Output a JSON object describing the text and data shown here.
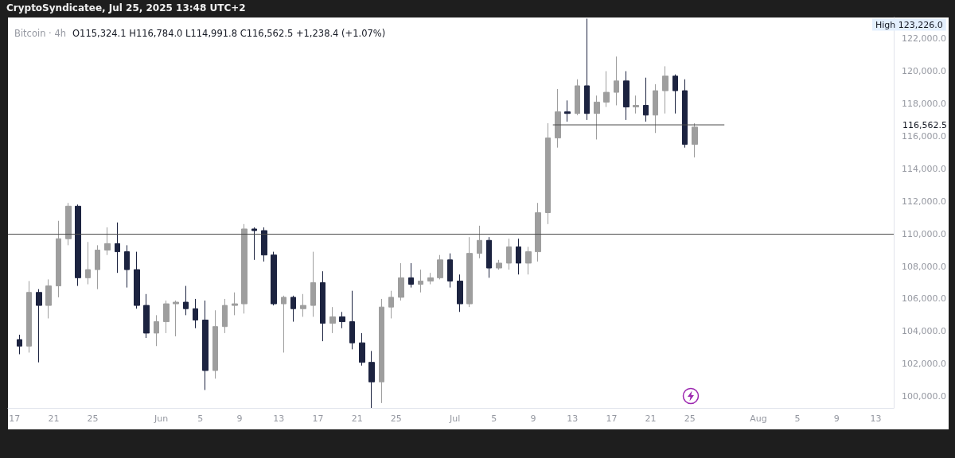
{
  "chart_data": {
    "type": "candlestick",
    "title": "Bitcoin · 4h",
    "subtitle": "O115,324.1 H116,784.0 L114,991.8 C116,562.5 +1,238.4 (+1.07%)",
    "annotations": [
      "CryptoSyndicatee, Jul 25, 2025 13:48 UTC+2",
      "High 123,226.0",
      "116,562.5"
    ],
    "series": [
      {
        "x": [
          "2025-05-17T12:00",
          "2025-05-18T12:00",
          "2025-05-19T12:00",
          "2025-05-20T12:00",
          "2025-05-21T12:00",
          "2025-05-22T12:00",
          "2025-05-23T12:00",
          "2025-05-24T12:00",
          "2025-05-25T12:00",
          "2025-05-26T12:00",
          "2025-05-27T12:00",
          "2025-05-28T12:00",
          "2025-05-29T12:00",
          "2025-05-30T12:00",
          "2025-05-31T12:00",
          "2025-06-01T12:00",
          "2025-06-02T12:00",
          "2025-06-03T12:00",
          "2025-06-04T12:00",
          "2025-06-05T12:00",
          "2025-06-06T12:00",
          "2025-06-07T12:00",
          "2025-06-08T12:00",
          "2025-06-09T12:00",
          "2025-06-10T12:00",
          "2025-06-11T12:00",
          "2025-06-12T12:00",
          "2025-06-13T12:00",
          "2025-06-14T12:00",
          "2025-06-15T12:00",
          "2025-06-16T12:00",
          "2025-06-17T12:00",
          "2025-06-18T12:00",
          "2025-06-19T12:00",
          "2025-06-20T12:00",
          "2025-06-21T12:00",
          "2025-06-22T12:00",
          "2025-06-23T12:00",
          "2025-06-24T12:00",
          "2025-06-25T12:00",
          "2025-06-26T12:00",
          "2025-06-27T12:00",
          "2025-06-28T12:00",
          "2025-06-29T12:00",
          "2025-06-30T12:00",
          "2025-07-01T12:00",
          "2025-07-02T12:00",
          "2025-07-03T12:00",
          "2025-07-04T12:00",
          "2025-07-05T12:00",
          "2025-07-06T12:00",
          "2025-07-07T12:00",
          "2025-07-08T12:00",
          "2025-07-09T12:00",
          "2025-07-10T12:00",
          "2025-07-11T12:00",
          "2025-07-12T12:00",
          "2025-07-13T12:00",
          "2025-07-14T12:00",
          "2025-07-15T12:00",
          "2025-07-16T12:00",
          "2025-07-17T12:00",
          "2025-07-18T12:00",
          "2025-07-19T12:00",
          "2025-07-20T12:00",
          "2025-07-21T12:00",
          "2025-07-22T12:00",
          "2025-07-23T12:00",
          "2025-07-24T12:00",
          "2025-07-25T12:00"
        ],
        "ohlc": [
          [
            103500,
            103800,
            102600,
            103100
          ],
          [
            103100,
            107100,
            102700,
            106400
          ],
          [
            106400,
            106600,
            102100,
            105600
          ],
          [
            105600,
            107200,
            104800,
            106800
          ],
          [
            106800,
            110800,
            106100,
            109700
          ],
          [
            109700,
            111900,
            109300,
            111700
          ],
          [
            111700,
            111800,
            106800,
            107300
          ],
          [
            107300,
            109500,
            106900,
            107800
          ],
          [
            107800,
            109300,
            106600,
            109000
          ],
          [
            109000,
            110400,
            108700,
            109400
          ],
          [
            109400,
            110700,
            107600,
            108900
          ],
          [
            108900,
            109300,
            106700,
            107800
          ],
          [
            107800,
            108900,
            105400,
            105600
          ],
          [
            105600,
            106300,
            103600,
            103900
          ],
          [
            103900,
            105000,
            103100,
            104600
          ],
          [
            104600,
            105900,
            103900,
            105700
          ],
          [
            105700,
            105900,
            103700,
            105800
          ],
          [
            105800,
            106800,
            105000,
            105400
          ],
          [
            105400,
            106000,
            104200,
            104700
          ],
          [
            104700,
            105900,
            100400,
            101600
          ],
          [
            101600,
            105300,
            101100,
            104300
          ],
          [
            104300,
            106000,
            103900,
            105600
          ],
          [
            105600,
            106400,
            105000,
            105700
          ],
          [
            105700,
            110600,
            105100,
            110300
          ],
          [
            110300,
            110400,
            108400,
            110200
          ],
          [
            110200,
            110400,
            108300,
            108700
          ],
          [
            108700,
            108900,
            105600,
            105700
          ],
          [
            105700,
            106200,
            102700,
            106100
          ],
          [
            106100,
            106200,
            104600,
            105400
          ],
          [
            105400,
            106300,
            104900,
            105600
          ],
          [
            105600,
            108900,
            104900,
            107000
          ],
          [
            107000,
            107700,
            103400,
            104500
          ],
          [
            104500,
            105500,
            103900,
            104900
          ],
          [
            104900,
            105200,
            104200,
            104600
          ],
          [
            104600,
            106500,
            102900,
            103300
          ],
          [
            103300,
            103900,
            101900,
            102100
          ],
          [
            102100,
            102800,
            99300,
            100900
          ],
          [
            100900,
            106000,
            99600,
            105500
          ],
          [
            105500,
            106500,
            104800,
            106100
          ],
          [
            106100,
            108200,
            105900,
            107300
          ],
          [
            107300,
            108200,
            106700,
            106900
          ],
          [
            106900,
            107800,
            106400,
            107100
          ],
          [
            107100,
            107600,
            106900,
            107300
          ],
          [
            107300,
            108700,
            107200,
            108400
          ],
          [
            108400,
            108800,
            106700,
            107100
          ],
          [
            107100,
            107500,
            105200,
            105700
          ],
          [
            105700,
            109800,
            105500,
            108800
          ],
          [
            108800,
            110500,
            108500,
            109600
          ],
          [
            109600,
            109800,
            107300,
            107900
          ],
          [
            107900,
            108400,
            107800,
            108200
          ],
          [
            108200,
            109700,
            107800,
            109200
          ],
          [
            109200,
            109700,
            107500,
            108200
          ],
          [
            108200,
            109200,
            107500,
            108900
          ],
          [
            108900,
            111900,
            108300,
            111300
          ],
          [
            111300,
            116800,
            110600,
            115900
          ],
          [
            115900,
            118900,
            115300,
            117500
          ],
          [
            117500,
            118200,
            116900,
            117400
          ],
          [
            117400,
            119500,
            117300,
            119100
          ],
          [
            119100,
            123226,
            117000,
            117400
          ],
          [
            117400,
            118500,
            115800,
            118100
          ],
          [
            118100,
            120000,
            117800,
            118700
          ],
          [
            118700,
            120900,
            117900,
            119400
          ],
          [
            119400,
            120000,
            117000,
            117800
          ],
          [
            117800,
            118500,
            117400,
            117900
          ],
          [
            117900,
            119600,
            116900,
            117300
          ],
          [
            117300,
            119200,
            116200,
            118800
          ],
          [
            118800,
            120300,
            117400,
            119700
          ],
          [
            119700,
            119800,
            117400,
            118800
          ],
          [
            118800,
            119500,
            115300,
            115500
          ],
          [
            115500,
            116800,
            114700,
            116562.5
          ]
        ],
        "colors": [
          "#1c2340",
          "#9e9e9e",
          "#1c2340",
          "#9e9e9e",
          "#9e9e9e",
          "#9e9e9e",
          "#1c2340",
          "#9e9e9e",
          "#9e9e9e",
          "#9e9e9e",
          "#1c2340",
          "#1c2340",
          "#1c2340",
          "#1c2340",
          "#9e9e9e",
          "#9e9e9e",
          "#9e9e9e",
          "#1c2340",
          "#1c2340",
          "#1c2340",
          "#9e9e9e",
          "#9e9e9e",
          "#9e9e9e",
          "#9e9e9e",
          "#1c2340",
          "#1c2340",
          "#1c2340",
          "#9e9e9e",
          "#1c2340",
          "#9e9e9e",
          "#9e9e9e",
          "#1c2340",
          "#9e9e9e",
          "#1c2340",
          "#1c2340",
          "#1c2340",
          "#1c2340",
          "#9e9e9e",
          "#9e9e9e",
          "#9e9e9e",
          "#1c2340",
          "#9e9e9e",
          "#9e9e9e",
          "#9e9e9e",
          "#1c2340",
          "#1c2340",
          "#9e9e9e",
          "#9e9e9e",
          "#1c2340",
          "#9e9e9e",
          "#9e9e9e",
          "#1c2340",
          "#9e9e9e",
          "#9e9e9e",
          "#9e9e9e",
          "#9e9e9e",
          "#1c2340",
          "#9e9e9e",
          "#1c2340",
          "#9e9e9e",
          "#9e9e9e",
          "#9e9e9e",
          "#1c2340",
          "#9e9e9e",
          "#1c2340",
          "#9e9e9e",
          "#9e9e9e",
          "#1c2340",
          "#1c2340",
          "#9e9e9e"
        ]
      },
      {
        "type": "line",
        "x": [
          "2025-07-11T01:00",
          "2025-07-28T12:00"
        ],
        "values": [
          116700,
          116700
        ],
        "color": "#4a4a4a"
      }
    ],
    "ref_lines": [
      {
        "axis": "y",
        "value": 110000,
        "color": "#4a4a4a"
      }
    ],
    "xlim": [
      "2025-05-16T08:00",
      "2025-08-14T20:00"
    ],
    "xticks": [
      {
        "value": "2025-05-17",
        "label": "17"
      },
      {
        "value": "2025-05-21",
        "label": "21"
      },
      {
        "value": "2025-05-25",
        "label": "25"
      },
      {
        "value": "2025-06-01",
        "label": "Jun"
      },
      {
        "value": "2025-06-05",
        "label": "5"
      },
      {
        "value": "2025-06-09",
        "label": "9"
      },
      {
        "value": "2025-06-13",
        "label": "13"
      },
      {
        "value": "2025-06-17",
        "label": "17"
      },
      {
        "value": "2025-06-21",
        "label": "21"
      },
      {
        "value": "2025-06-25",
        "label": "25"
      },
      {
        "value": "2025-07-01",
        "label": "Jul"
      },
      {
        "value": "2025-07-05",
        "label": "5"
      },
      {
        "value": "2025-07-09",
        "label": "9"
      },
      {
        "value": "2025-07-13",
        "label": "13"
      },
      {
        "value": "2025-07-17",
        "label": "17"
      },
      {
        "value": "2025-07-21",
        "label": "21"
      },
      {
        "value": "2025-07-25",
        "label": "25"
      },
      {
        "value": "2025-08-01",
        "label": "Aug"
      },
      {
        "value": "2025-08-05",
        "label": "5"
      },
      {
        "value": "2025-08-09",
        "label": "9"
      },
      {
        "value": "2025-08-13",
        "label": "13"
      }
    ],
    "ylim": [
      99300,
      123300
    ],
    "yticks": [
      {
        "value": 100000,
        "label": "100,000.0"
      },
      {
        "value": 102000,
        "label": "102,000.0"
      },
      {
        "value": 104000,
        "label": "104,000.0"
      },
      {
        "value": 106000,
        "label": "106,000.0"
      },
      {
        "value": 108000,
        "label": "108,000.0"
      },
      {
        "value": 110000,
        "label": "110,000.0"
      },
      {
        "value": 112000,
        "label": "112,000.0"
      },
      {
        "value": 114000,
        "label": "114,000.0"
      },
      {
        "value": 116000,
        "label": "116,000.0"
      },
      {
        "value": 118000,
        "label": "118,000.0"
      },
      {
        "value": 120000,
        "label": "120,000.0"
      },
      {
        "value": 122000,
        "label": "122,000.0"
      }
    ],
    "grid": false
  }
}
